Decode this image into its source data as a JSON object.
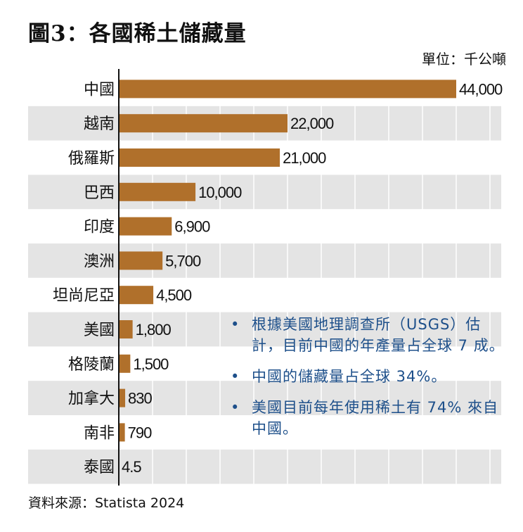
{
  "title": "圖3：各國稀土儲藏量",
  "unit": "單位：千公噸",
  "source": "資料來源：Statista 2024",
  "colors": {
    "bar": "#b0702b",
    "band": "#e4e4e4",
    "note": "#1d4f8a"
  },
  "notes": [
    "根據美國地理調查所（USGS）估計，目前中國的年產量占全球 7 成。",
    "中國的儲藏量占全球 34%。",
    "美國目前每年使用稀土有 74% 來自中國。"
  ],
  "chart_data": {
    "type": "bar",
    "orientation": "horizontal",
    "title": "圖3：各國稀土儲藏量",
    "ylabel": "單位：千公噸",
    "categories": [
      "中國",
      "越南",
      "俄羅斯",
      "巴西",
      "印度",
      "澳洲",
      "坦尚尼亞",
      "美國",
      "格陵蘭",
      "加拿大",
      "南非",
      "泰國"
    ],
    "values": [
      44000,
      22000,
      21000,
      10000,
      6900,
      5700,
      4500,
      1800,
      1500,
      830,
      790,
      4.5
    ],
    "value_labels": [
      "44,000",
      "22,000",
      "21,000",
      "10,000",
      "6,900",
      "5,700",
      "4,500",
      "1,800",
      "1,500",
      "830",
      "790",
      "4.5"
    ],
    "xlim": [
      0,
      44000
    ],
    "grid": true
  }
}
